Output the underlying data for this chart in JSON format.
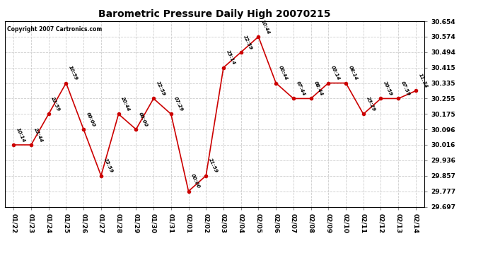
{
  "title": "Barometric Pressure Daily High 20070215",
  "copyright": "Copyright 2007 Cartronics.com",
  "background_color": "#ffffff",
  "grid_color": "#cccccc",
  "line_color": "#cc0000",
  "marker_color": "#cc0000",
  "text_color": "#000000",
  "x_labels": [
    "01/22",
    "01/23",
    "01/24",
    "01/25",
    "01/26",
    "01/27",
    "01/28",
    "01/29",
    "01/30",
    "01/31",
    "02/01",
    "02/02",
    "02/03",
    "02/04",
    "02/05",
    "02/06",
    "02/07",
    "02/08",
    "02/09",
    "02/10",
    "02/11",
    "02/12",
    "02/13",
    "02/14"
  ],
  "y_values": [
    30.016,
    30.016,
    30.175,
    30.335,
    30.096,
    29.857,
    30.175,
    30.096,
    30.255,
    30.175,
    29.777,
    29.857,
    30.415,
    30.494,
    30.574,
    30.335,
    30.255,
    30.255,
    30.335,
    30.335,
    30.175,
    30.255,
    30.255,
    30.295
  ],
  "time_labels": [
    "10:14",
    "23:44",
    "23:59",
    "10:59",
    "00:00",
    "23:59",
    "20:44",
    "00:00",
    "22:59",
    "07:29",
    "00:00",
    "21:59",
    "23:14",
    "22:59",
    "10:44",
    "00:44",
    "07:44",
    "08:44",
    "09:14",
    "08:14",
    "23:29",
    "20:59",
    "07:59",
    "11:14"
  ],
  "y_ticks": [
    29.697,
    29.777,
    29.857,
    29.936,
    30.016,
    30.096,
    30.175,
    30.255,
    30.335,
    30.415,
    30.494,
    30.574,
    30.654
  ],
  "y_min": 29.697,
  "y_max": 30.654,
  "title_fontsize": 10,
  "tick_fontsize": 6.5,
  "annot_fontsize": 5,
  "copyright_fontsize": 5.5
}
